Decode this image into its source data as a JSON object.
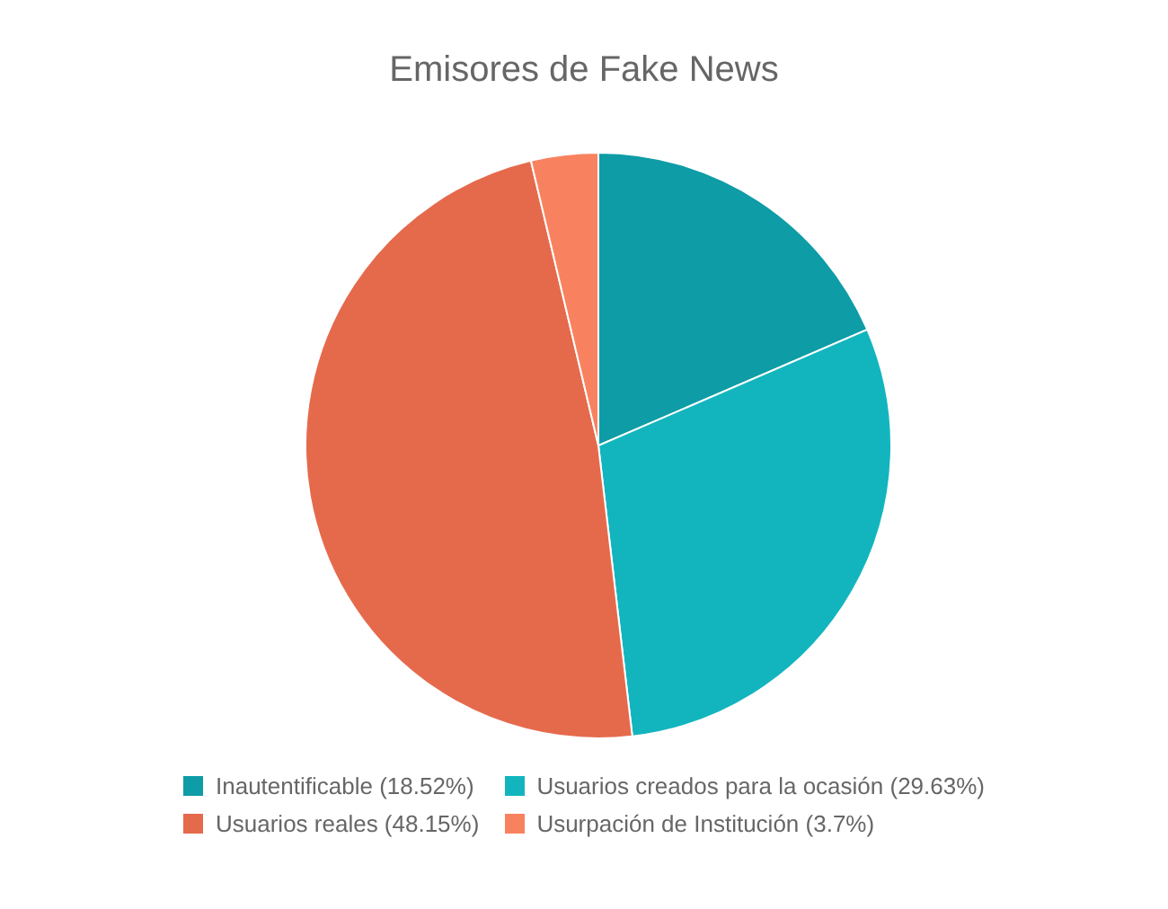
{
  "chart_data": {
    "type": "pie",
    "title": "Emisores de Fake News",
    "categories": [
      "Inautentificable (18.52%)",
      "Usuarios creados para la ocasión (29.63%)",
      "Usuarios reales (48.15%)",
      "Usurpación de Institución (3.7%)"
    ],
    "values": [
      18.52,
      29.63,
      48.15,
      3.7
    ],
    "colors": [
      "#0e9ca6",
      "#12b5be",
      "#e56a4c",
      "#f8825f"
    ],
    "legend": "bottom"
  }
}
